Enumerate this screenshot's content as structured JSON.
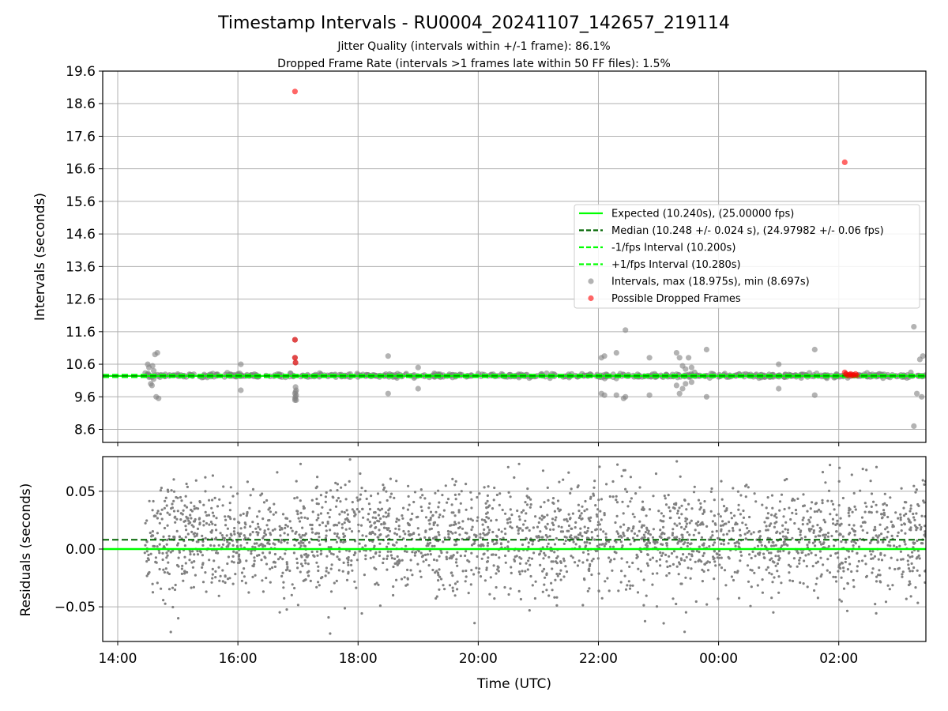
{
  "chart_data": {
    "type": "scatter",
    "title": "Timestamp Intervals - RU0004_20241107_142657_219114",
    "subtitle_lines": [
      "Jitter Quality (intervals within +/-1 frame): 86.1%",
      "Dropped Frame Rate (intervals >1 frames late within 50 FF files): 1.5%"
    ],
    "xlabel": "Time (UTC)",
    "x_unit": "hours since 14:00 UTC, 2024-11-07",
    "x_range": [
      -0.25,
      13.45
    ],
    "x_ticks": [
      {
        "v": 0,
        "label": "14:00"
      },
      {
        "v": 2,
        "label": "16:00"
      },
      {
        "v": 4,
        "label": "18:00"
      },
      {
        "v": 6,
        "label": "20:00"
      },
      {
        "v": 8,
        "label": "22:00"
      },
      {
        "v": 10,
        "label": "00:00"
      },
      {
        "v": 12,
        "label": "02:00"
      }
    ],
    "grid": true,
    "legend_position": "center-right (upper panel)",
    "colors": {
      "expected": "#00ff00",
      "median": "#006400",
      "band": "#00ff00",
      "intervals": "#808080",
      "dropped": "#ff0000"
    },
    "upper": {
      "ylabel": "Intervals (seconds)",
      "ylim": [
        8.2,
        19.6
      ],
      "y_ticks": [
        8.6,
        9.6,
        10.6,
        11.6,
        12.6,
        13.6,
        14.6,
        15.6,
        16.6,
        17.6,
        18.6,
        19.6
      ],
      "expected": 10.24,
      "median": 10.248,
      "minus_interval": 10.2,
      "plus_interval": 10.28,
      "legend": [
        {
          "label": "Expected (10.240s), (25.00000 fps)",
          "style": "solid",
          "color": "#00ff00"
        },
        {
          "label": "Median (10.248 +/- 0.024 s), (24.97982 +/- 0.06 fps)",
          "style": "dashed",
          "color": "#006400"
        },
        {
          "label": "-1/fps Interval (10.200s)",
          "style": "dashed",
          "color": "#00ff00"
        },
        {
          "label": "+1/fps Interval (10.280s)",
          "style": "dashed",
          "color": "#00ff00"
        },
        {
          "label": "Intervals, max (18.975s), min (8.697s)",
          "style": "dot",
          "color": "#808080"
        },
        {
          "label": "Possible Dropped Frames",
          "style": "dot",
          "color": "#ff0000"
        }
      ],
      "outliers": [
        [
          0.62,
          10.9
        ],
        [
          0.66,
          10.95
        ],
        [
          0.58,
          10.55
        ],
        [
          0.6,
          10.4
        ],
        [
          0.64,
          9.6
        ],
        [
          0.68,
          9.55
        ],
        [
          0.52,
          10.5
        ],
        [
          0.55,
          10.0
        ],
        [
          0.57,
          9.95
        ],
        [
          0.5,
          10.6
        ],
        [
          2.05,
          10.6
        ],
        [
          2.05,
          9.8
        ],
        [
          2.95,
          11.35
        ],
        [
          2.95,
          10.8
        ],
        [
          2.96,
          10.65
        ],
        [
          2.95,
          9.55
        ],
        [
          2.96,
          9.6
        ],
        [
          2.97,
          9.65
        ],
        [
          2.95,
          9.7
        ],
        [
          2.96,
          9.75
        ],
        [
          2.97,
          9.8
        ],
        [
          2.95,
          9.5
        ],
        [
          2.97,
          9.5
        ],
        [
          2.96,
          9.9
        ],
        [
          4.5,
          10.85
        ],
        [
          4.5,
          9.7
        ],
        [
          5.0,
          10.5
        ],
        [
          5.0,
          9.85
        ],
        [
          8.05,
          10.8
        ],
        [
          8.1,
          10.85
        ],
        [
          8.05,
          9.7
        ],
        [
          8.1,
          9.65
        ],
        [
          8.45,
          11.65
        ],
        [
          8.45,
          9.6
        ],
        [
          8.42,
          9.55
        ],
        [
          8.3,
          10.95
        ],
        [
          8.3,
          9.65
        ],
        [
          8.85,
          10.8
        ],
        [
          8.85,
          9.65
        ],
        [
          9.3,
          10.95
        ],
        [
          9.35,
          10.8
        ],
        [
          9.4,
          10.55
        ],
        [
          9.45,
          10.45
        ],
        [
          9.5,
          10.8
        ],
        [
          9.3,
          9.95
        ],
        [
          9.35,
          9.7
        ],
        [
          9.4,
          9.85
        ],
        [
          9.45,
          10.0
        ],
        [
          9.55,
          10.5
        ],
        [
          9.55,
          10.05
        ],
        [
          9.8,
          11.05
        ],
        [
          9.8,
          9.6
        ],
        [
          9.6,
          10.35
        ],
        [
          11.0,
          10.6
        ],
        [
          11.0,
          9.85
        ],
        [
          11.6,
          11.05
        ],
        [
          11.6,
          9.65
        ],
        [
          13.25,
          11.75
        ],
        [
          13.35,
          10.75
        ],
        [
          13.4,
          10.85
        ],
        [
          13.3,
          9.7
        ],
        [
          13.38,
          9.6
        ],
        [
          13.25,
          8.7
        ],
        [
          13.2,
          10.35
        ]
      ],
      "dropped_frames": [
        [
          2.95,
          18.975
        ],
        [
          2.95,
          11.35
        ],
        [
          2.95,
          10.8
        ],
        [
          2.96,
          10.65
        ],
        [
          12.1,
          16.8
        ],
        [
          12.1,
          10.35
        ],
        [
          12.12,
          10.3
        ],
        [
          12.15,
          10.25
        ],
        [
          12.18,
          10.28
        ],
        [
          12.2,
          10.3
        ],
        [
          12.22,
          10.25
        ],
        [
          12.25,
          10.27
        ],
        [
          12.28,
          10.3
        ],
        [
          12.3,
          10.26
        ]
      ]
    },
    "lower": {
      "ylabel": "Residuals (seconds)",
      "ylim": [
        -0.08,
        0.08
      ],
      "y_ticks": [
        {
          "v": 0.05,
          "label": "0.05"
        },
        {
          "v": 0.0,
          "label": "0.00"
        },
        {
          "v": -0.05,
          "label": "−0.05"
        }
      ],
      "expected_line": 0.0,
      "median_line": 0.008,
      "residual_sample": {
        "x_start": 0.45,
        "x_end": 13.45,
        "count": 2600,
        "sd": 0.024,
        "mean": 0.008
      }
    }
  }
}
